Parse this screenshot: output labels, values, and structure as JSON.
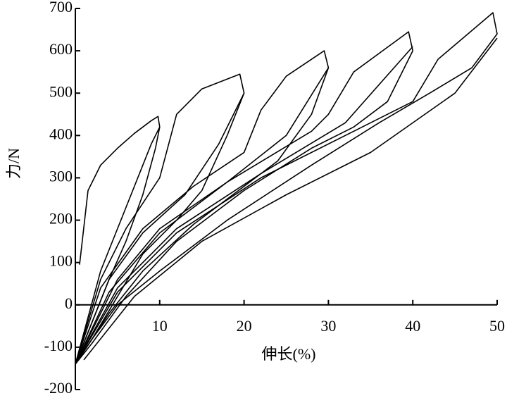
{
  "chart_data": {
    "type": "line",
    "x_label": "伸长(%)",
    "y_label": "力/N",
    "xlim": [
      0,
      50
    ],
    "ylim": [
      -200,
      700
    ],
    "xticks": [
      10,
      20,
      30,
      40,
      50
    ],
    "yticks": [
      -200,
      -100,
      0,
      100,
      200,
      300,
      400,
      500,
      600,
      700
    ],
    "series": [
      {
        "color": "#000000",
        "x": [
          0.5,
          1.5,
          3,
          5,
          7,
          9,
          9.8,
          10,
          9.5,
          8,
          6,
          4,
          2,
          0
        ],
        "values": [
          95,
          270,
          330,
          370,
          405,
          435,
          445,
          420,
          370,
          260,
          150,
          60,
          -40,
          -140
        ]
      },
      {
        "color": "#000000",
        "x": [
          0,
          3,
          6,
          9,
          10
        ],
        "values": [
          -140,
          80,
          230,
          380,
          420
        ]
      },
      {
        "color": "#000000",
        "x": [
          0,
          3,
          6,
          10,
          12,
          15,
          19.5,
          20,
          18,
          15,
          12,
          8,
          5,
          2,
          0
        ],
        "values": [
          -140,
          60,
          180,
          300,
          450,
          510,
          545,
          500,
          400,
          270,
          200,
          120,
          20,
          -80,
          -140
        ]
      },
      {
        "color": "#000000",
        "x": [
          0,
          4,
          8,
          13,
          17,
          20
        ],
        "values": [
          -140,
          60,
          170,
          260,
          380,
          500
        ]
      },
      {
        "color": "#000000",
        "x": [
          0,
          3,
          8,
          14,
          20,
          22,
          25,
          29.5,
          30,
          28,
          24,
          20,
          14,
          8,
          4,
          0
        ],
        "values": [
          -140,
          40,
          180,
          280,
          360,
          460,
          540,
          600,
          560,
          450,
          340,
          280,
          190,
          80,
          -20,
          -140
        ]
      },
      {
        "color": "#000000",
        "x": [
          0,
          5,
          10,
          18,
          25,
          30
        ],
        "values": [
          -140,
          60,
          180,
          290,
          400,
          560
        ]
      },
      {
        "color": "#000000",
        "x": [
          0,
          4,
          10,
          18,
          28,
          30,
          33,
          39.5,
          40,
          37,
          33,
          28,
          20,
          12,
          6,
          2,
          0
        ],
        "values": [
          -140,
          30,
          170,
          290,
          410,
          450,
          550,
          645,
          600,
          480,
          420,
          370,
          270,
          150,
          20,
          -90,
          -140
        ]
      },
      {
        "color": "#000000",
        "x": [
          0,
          5,
          12,
          22,
          32,
          40
        ],
        "values": [
          -140,
          40,
          180,
          310,
          430,
          610
        ]
      },
      {
        "color": "#000000",
        "x": [
          0,
          5,
          12,
          22,
          34,
          40,
          43,
          49.5,
          50,
          47,
          42,
          36,
          28,
          18,
          10,
          5,
          2,
          0
        ],
        "values": [
          -140,
          30,
          170,
          300,
          420,
          480,
          580,
          690,
          640,
          560,
          500,
          430,
          330,
          200,
          80,
          0,
          -80,
          -140
        ]
      },
      {
        "color": "#000000",
        "x": [
          1,
          7,
          15,
          25,
          35,
          45,
          50
        ],
        "values": [
          -130,
          20,
          150,
          260,
          360,
          500,
          630
        ]
      }
    ]
  }
}
